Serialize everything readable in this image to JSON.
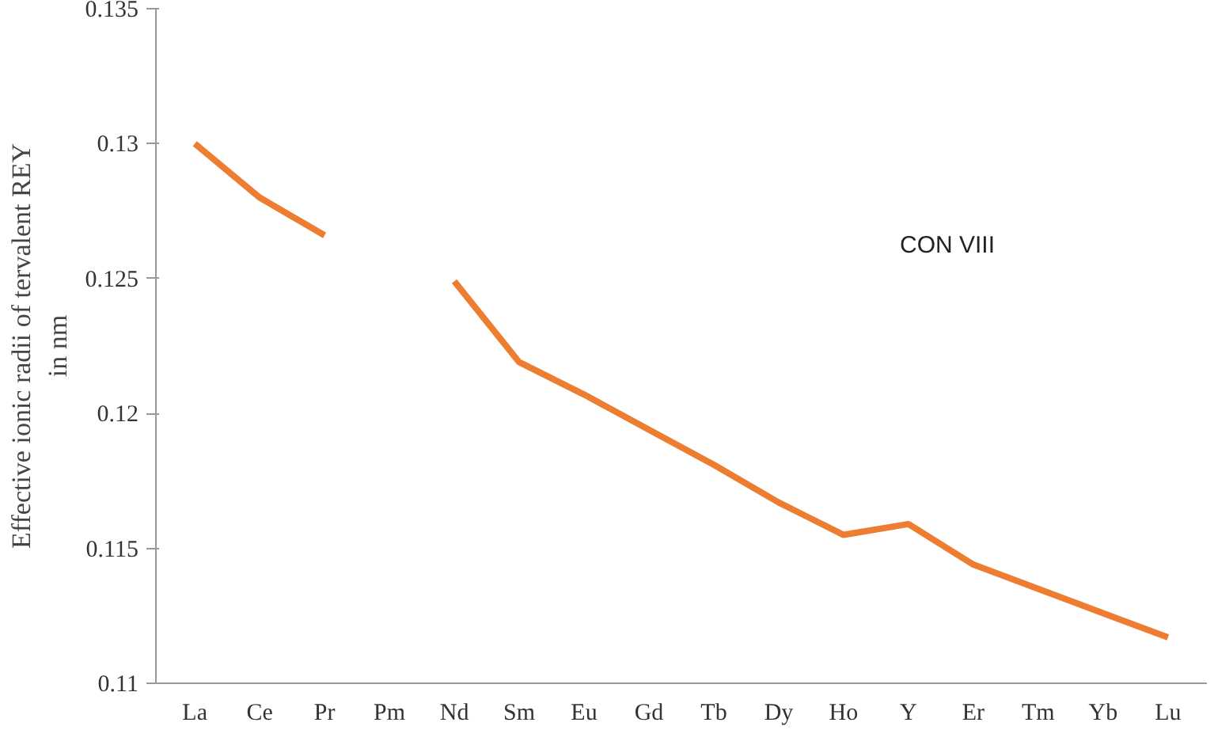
{
  "chart_data": {
    "type": "line",
    "ylabel": "Effective ionic radii of tervalent REY\nin nm",
    "categories": [
      "La",
      "Ce",
      "Pr",
      "Pm",
      "Nd",
      "Sm",
      "Eu",
      "Gd",
      "Tb",
      "Dy",
      "Ho",
      "Y",
      "Er",
      "Tm",
      "Yb",
      "Lu"
    ],
    "series": [
      {
        "color": "#ed7d31",
        "values": [
          0.13,
          0.128,
          0.1266,
          null,
          0.1249,
          0.1219,
          0.1207,
          0.1194,
          0.1181,
          0.1167,
          0.1155,
          0.1159,
          0.1144,
          0.1135,
          0.1126,
          0.1117
        ]
      }
    ],
    "ylim": [
      0.11,
      0.135
    ],
    "yticks": [
      0.11,
      0.115,
      0.12,
      0.125,
      0.13,
      0.135
    ],
    "annotations": [
      "CON VIII"
    ],
    "grid": false,
    "marker": "none",
    "line_style": "solid"
  }
}
